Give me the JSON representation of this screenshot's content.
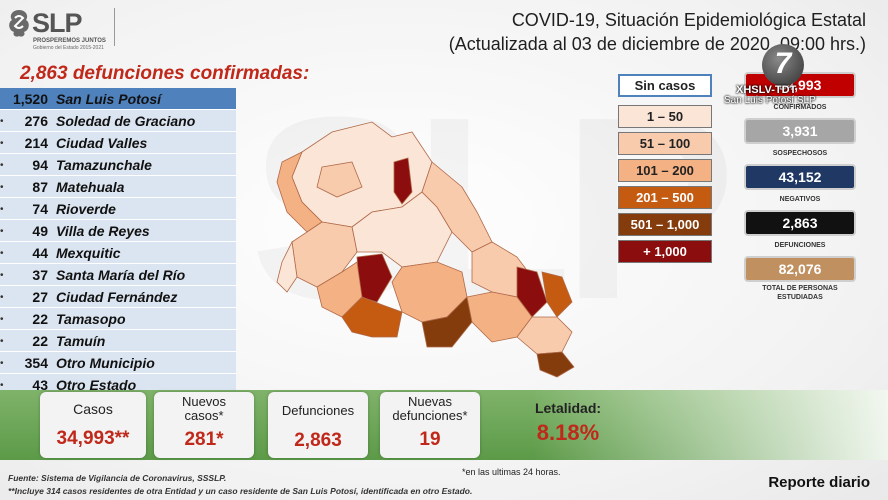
{
  "logo": {
    "word": "SLP",
    "tagline": "PROSPEREMOS JUNTOS",
    "subline": "Gobierno del Estado 2015-2021"
  },
  "header": {
    "title": "COVID-19, Situación Epidemiológica Estatal",
    "subtitle": "(Actualizada al 03 de diciembre de 2020, 09:00 hrs.)"
  },
  "deaths_title": "2,863 defunciones confirmadas:",
  "municipalities": [
    {
      "count": "1,520",
      "name": "San Luis Potosí"
    },
    {
      "count": "276",
      "name": "Soledad de Graciano"
    },
    {
      "count": "214",
      "name": "Ciudad Valles"
    },
    {
      "count": "94",
      "name": "Tamazunchale"
    },
    {
      "count": "87",
      "name": "Matehuala"
    },
    {
      "count": "74",
      "name": "Rioverde"
    },
    {
      "count": "49",
      "name": "Villa de Reyes"
    },
    {
      "count": "44",
      "name": "Mexquitic"
    },
    {
      "count": "37",
      "name": "Santa María del Río"
    },
    {
      "count": "27",
      "name": "Ciudad Fernández"
    },
    {
      "count": "22",
      "name": "Tamasopo"
    },
    {
      "count": "22",
      "name": "Tamuín"
    },
    {
      "count": "354",
      "name": "Otro Municipio"
    },
    {
      "count": "43",
      "name": "Otro Estado"
    }
  ],
  "legend": [
    {
      "label": "Sin casos",
      "color": "#ffffff"
    },
    {
      "label": "1 – 50",
      "color": "#fbe5d6"
    },
    {
      "label": "51 – 100",
      "color": "#f8cbad"
    },
    {
      "label": "101 – 200",
      "color": "#f4b183"
    },
    {
      "label": "201 – 500",
      "color": "#c55a11"
    },
    {
      "label": "501 – 1,000",
      "color": "#843c0c"
    },
    {
      "label": "+ 1,000",
      "color": "#8b0d0d"
    }
  ],
  "tv": {
    "channel": "7",
    "line1": "XHSLV-TDT",
    "line2": "San Luis Potosí SLP"
  },
  "stats": [
    {
      "value": "34,993",
      "label": "CONFIRMADOS",
      "color": "#c00000"
    },
    {
      "value": "3,931",
      "label": "SOSPECHOSOS",
      "color": "#a6a6a6"
    },
    {
      "value": "43,152",
      "label": "NEGATIVOS",
      "color": "#1f3864"
    },
    {
      "value": "2,863",
      "label": "DEFUNCIONES",
      "color": "#111111"
    },
    {
      "value": "82,076",
      "label": "TOTAL DE PERSONAS ESTUDIADAS",
      "color": "#c09060"
    }
  ],
  "bottom": {
    "casos": {
      "label": "Casos",
      "value": "34,993**"
    },
    "nuevos": {
      "label_l1": "Nuevos",
      "label_l2": "casos*",
      "value": "281*"
    },
    "defunciones": {
      "label": "Defunciones",
      "value": "2,863"
    },
    "nuevas_def": {
      "label_l1": "Nuevas",
      "label_l2": "defunciones*",
      "value": "19"
    },
    "letalidad": {
      "label": "Letalidad:",
      "value": "8.18%"
    }
  },
  "note_24h": "*en las ultimas 24 horas.",
  "fuente": "Fuente: Sistema de Vigilancia de Coronavirus, SSSLP.",
  "incluye": "**Incluye 314 casos residentes de otra Entidad y un caso residente de San Luis Potosí, identificada en otro Estado.",
  "reporte": "Reporte diario"
}
